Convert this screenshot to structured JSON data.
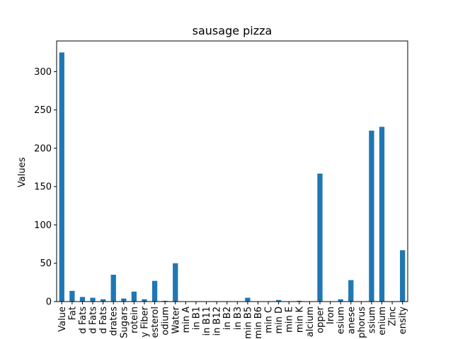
{
  "chart_data": {
    "type": "bar",
    "title": "sausage pizza",
    "xlabel": "",
    "ylabel": "Values",
    "ylim": [
      0,
      340
    ],
    "yticks": [
      0,
      50,
      100,
      150,
      200,
      250,
      300
    ],
    "bar_color": "#1f77b4",
    "grid": false,
    "categories": [
      "Value",
      "Fat",
      "d Fats",
      "d Fats",
      "d Fats",
      "drates",
      "Sugars",
      "rotein",
      "y Fiber",
      "esterol",
      "odium",
      "Water",
      "min A",
      "in B1",
      "in B11",
      "in B12",
      "in B2",
      "in B3",
      "min B5",
      "min B6",
      "min C",
      "min D",
      "min E",
      "min K",
      "alcium",
      "opper",
      "Iron",
      "esium",
      "anese",
      "phorus",
      "ssium",
      "enium",
      "Zinc",
      "ensity"
    ],
    "values": [
      325,
      14,
      6,
      5,
      3,
      35,
      4,
      13,
      3,
      27,
      1,
      50,
      0,
      0,
      0,
      0,
      0,
      0,
      5,
      0,
      0,
      2,
      0,
      1,
      0,
      167,
      0,
      3,
      28,
      0,
      223,
      228,
      0,
      67
    ]
  }
}
